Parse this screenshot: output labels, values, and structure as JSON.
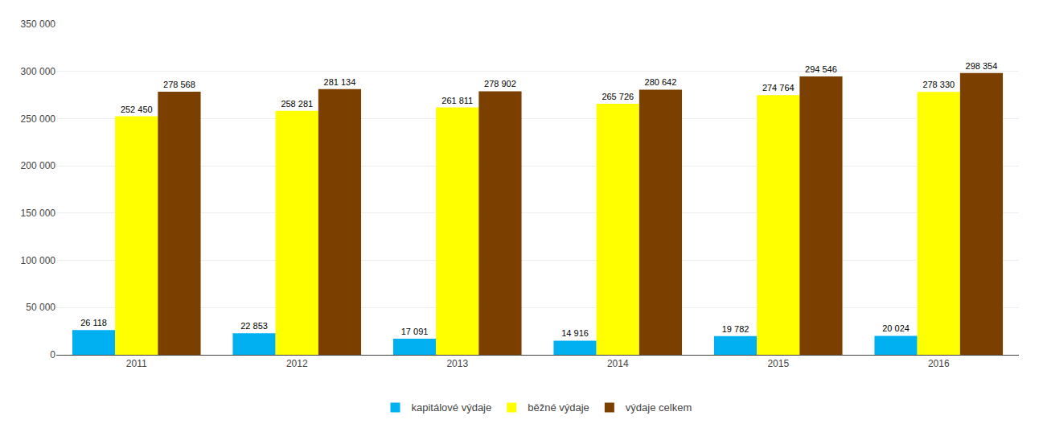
{
  "chart_data": {
    "type": "bar",
    "categories": [
      "2011",
      "2012",
      "2013",
      "2014",
      "2015",
      "2016"
    ],
    "series": [
      {
        "name": "kapitálové výdaje",
        "color": "#00B0F0",
        "values": [
          26118,
          22853,
          17091,
          14916,
          19782,
          20024
        ],
        "value_labels": [
          "26 118",
          "22 853",
          "17 091",
          "14 916",
          "19 782",
          "20 024"
        ]
      },
      {
        "name": "běžné výdaje",
        "color": "#FFFF00",
        "values": [
          252450,
          258281,
          261811,
          265726,
          274764,
          278330
        ],
        "value_labels": [
          "252 450",
          "258 281",
          "261 811",
          "265 726",
          "274 764",
          "278 330"
        ]
      },
      {
        "name": "výdaje celkem",
        "color": "#7B3F00",
        "values": [
          278568,
          281134,
          278902,
          280642,
          294546,
          298354
        ],
        "value_labels": [
          "278 568",
          "281 134",
          "278 902",
          "280 642",
          "294 546",
          "298 354"
        ]
      }
    ],
    "ylim": [
      0,
      350000
    ],
    "yticks": [
      0,
      {
        "value": 50000,
        "label": "50 000"
      },
      {
        "value": 100000,
        "label": "100 000"
      },
      {
        "value": 150000,
        "label": "150 000"
      },
      {
        "value": 200000,
        "label": "200 000"
      },
      {
        "value": 250000,
        "label": "250 000"
      },
      {
        "value": 300000,
        "label": "300 000"
      },
      {
        "value": 350000,
        "label": "350 000"
      }
    ],
    "grid": true,
    "legend": "bottom",
    "data_labels": true
  }
}
